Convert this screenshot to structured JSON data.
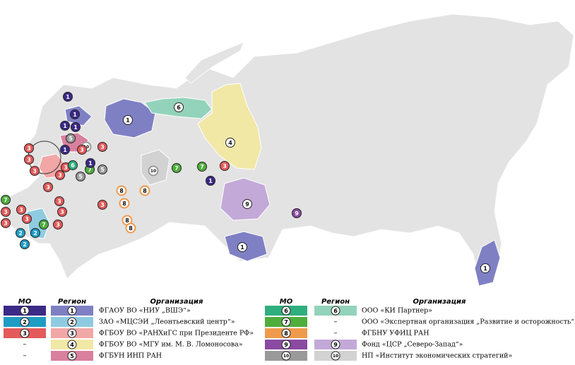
{
  "legend": {
    "columns": [
      "МО",
      "Регион",
      "Организация"
    ],
    "rows": [
      {
        "mo": "1",
        "region": "1",
        "org": "ФГАОУ ВО «НИУ „ВШЭ“»",
        "mo_color": "#3b2a86",
        "region_color": "#7f80c4"
      },
      {
        "mo": "2",
        "region": "2",
        "org": "ЗАО «МЦСЭИ „Леонтьевский центр“»",
        "mo_color": "#1f9cc4",
        "region_color": "#8fcbe0"
      },
      {
        "mo": "3",
        "region": "3",
        "org": "ФГБОУ ВО «РАНХиГС при Президенте РФ»",
        "mo_color": "#e45a5a",
        "region_color": "#f2a7a7"
      },
      {
        "mo": "–",
        "region": "4",
        "org": "ФГБОУ ВО «МГУ им. М. В. Ломоносова»",
        "mo_color": null,
        "region_color": "#f1e8a6"
      },
      {
        "mo": "–",
        "region": "5",
        "org": "ФГБУН ИНП РАН",
        "mo_color": null,
        "region_color": "#d8809e"
      },
      {
        "mo": "6",
        "region": "6",
        "org": "ООО «КИ Партнер»",
        "mo_color": "#2fae7e",
        "region_color": "#93d3bb"
      },
      {
        "mo": "7",
        "region": "–",
        "org": "ООО «Экспертная организация „Развитие и осторожность“»",
        "mo_color": "#4fae3c",
        "region_color": null
      },
      {
        "mo": "8",
        "region": "–",
        "org": "ФГБНУ УФИЦ РАН",
        "mo_color": "#f09a4c",
        "region_color": null
      },
      {
        "mo": "9",
        "region": "9",
        "org": "Фонд «ЦСР „Северо-Запад“»",
        "mo_color": "#8a4aa2",
        "region_color": "#c3a9d8"
      },
      {
        "mo": "10",
        "region": "10",
        "org": "НП «Институт экономических стратегий»",
        "mo_color": "#9a9a9a",
        "region_color": "#d2d2d2"
      }
    ]
  },
  "map": {
    "markers": [
      "1",
      "1",
      "1",
      "1",
      "5",
      "10",
      "3",
      "3",
      "3",
      "3",
      "1",
      "3",
      "3",
      "6",
      "7",
      "1",
      "5",
      "3",
      "3",
      "5",
      "7",
      "3",
      "3",
      "3",
      "3",
      "2",
      "2",
      "2",
      "7",
      "3",
      "3",
      "3",
      "3",
      "8",
      "8",
      "8",
      "8",
      "8",
      "7",
      "7",
      "3",
      "1",
      "9",
      "1",
      "6",
      "4",
      "10",
      "9",
      "1",
      "1"
    ]
  }
}
